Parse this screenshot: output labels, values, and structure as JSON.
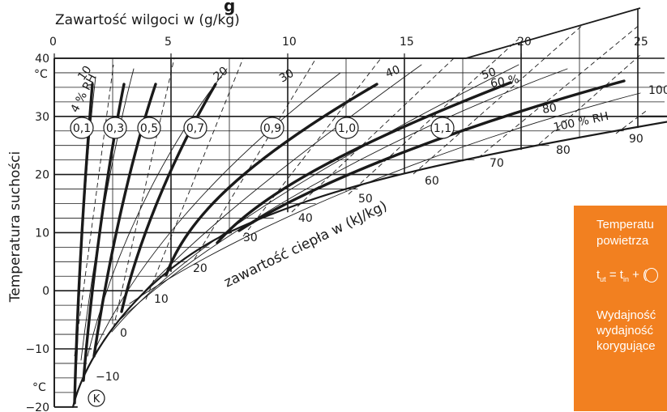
{
  "title_partial": "g",
  "x_axis": {
    "label": "Zawartość wilgoci w (g/kg)",
    "ticks": [
      "0",
      "5",
      "10",
      "15",
      "20",
      "25"
    ]
  },
  "y_axis": {
    "label": "Temperatura suchości",
    "unit_top": "°C",
    "unit_bottom": "°C",
    "ticks": [
      "40",
      "30",
      "20",
      "10",
      "0",
      "−10",
      "−20"
    ]
  },
  "enthalpy_axis": {
    "label": "zawartość ciepła w (kJ/kg)",
    "values": [
      "−10",
      "0",
      "10",
      "20",
      "30",
      "40",
      "50",
      "60",
      "70",
      "80",
      "90",
      "100"
    ]
  },
  "rh_labels": [
    "4 % RH",
    "10",
    "20",
    "30",
    "40",
    "50",
    "60 %",
    "80",
    "100 % RH"
  ],
  "factor_labels": [
    "0,1",
    "0,3",
    "0,5",
    "0,7",
    "0,9",
    "1,0",
    "1,1"
  ],
  "k_label": "K",
  "orange_box": {
    "line1": "Temperatu",
    "line2": "powietrza",
    "formula_t": "t",
    "formula_ut": "ut",
    "formula_eq": " = t",
    "formula_in": "in",
    "formula_plus": " + (",
    "line3": "Wydajność",
    "line4": "wydajność",
    "line5": "korygujące",
    "color": "#f28020"
  }
}
